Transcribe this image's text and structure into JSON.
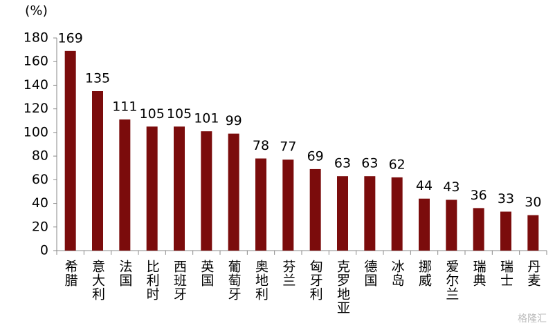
{
  "chart_data": {
    "type": "bar",
    "y_label": "(%)",
    "categories": [
      "希腊",
      "意大利",
      "法国",
      "比利时",
      "西班牙",
      "英国",
      "葡萄牙",
      "奥地利",
      "芬兰",
      "匈牙利",
      "克罗地亚",
      "德国",
      "冰岛",
      "挪威",
      "爱尔兰",
      "瑞典",
      "瑞士",
      "丹麦"
    ],
    "values": [
      169,
      135,
      111,
      105,
      105,
      101,
      99,
      78,
      77,
      69,
      63,
      63,
      62,
      44,
      43,
      36,
      33,
      30
    ],
    "color": "#7b0c0c",
    "ylim": [
      0,
      180
    ],
    "yticks": [
      0,
      20,
      40,
      60,
      80,
      100,
      120,
      140,
      160,
      180
    ],
    "watermark": "格隆汇"
  }
}
